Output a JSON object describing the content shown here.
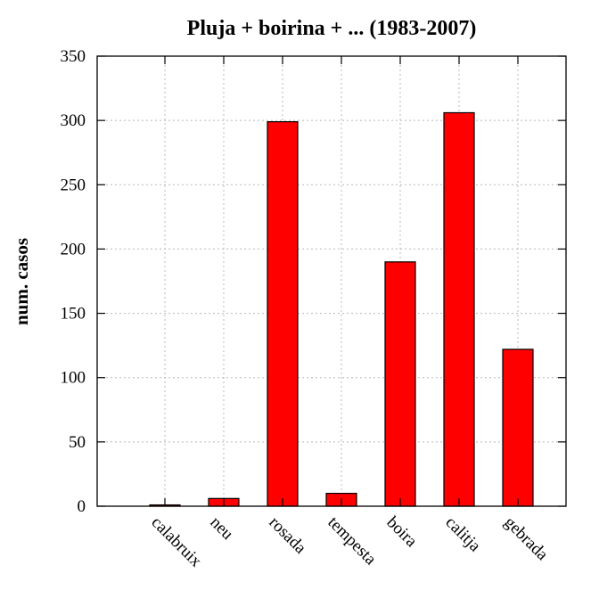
{
  "chart_data": {
    "type": "bar",
    "title": "Pluja + boirina + ... (1983-2007)",
    "xlabel": "",
    "ylabel": "num. casos",
    "categories": [
      "calabruix",
      "neu",
      "rosada",
      "tempesta",
      "boira",
      "calitja",
      "gebrada"
    ],
    "values": [
      1,
      6,
      299,
      10,
      190,
      306,
      122
    ],
    "ylim": [
      0,
      350
    ],
    "yticks": [
      0,
      50,
      100,
      150,
      200,
      250,
      300,
      350
    ],
    "grid": true,
    "bar_color": "#ff0000",
    "legend": "none"
  }
}
